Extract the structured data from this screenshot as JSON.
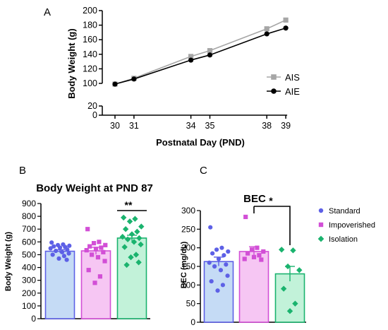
{
  "chart_data": [
    {
      "panel": "A",
      "type": "line",
      "title": "",
      "xlabel": "Postnatal Day (PND)",
      "ylabel": "Body Weight (g)",
      "x": [
        30,
        31,
        34,
        35,
        38,
        39
      ],
      "x_ticks": [
        "30",
        "31",
        "34",
        "35",
        "38",
        "39"
      ],
      "y_ticks_upper": [
        "100",
        "120",
        "140",
        "160",
        "180",
        "200"
      ],
      "y_ticks_lower": [
        "0",
        "20"
      ],
      "ylim_upper": [
        100,
        200
      ],
      "ylim_lower": [
        0,
        20
      ],
      "broken_axis": true,
      "series": [
        {
          "name": "AIS",
          "color": "#a6a6a6",
          "marker": "square",
          "values": [
            99,
            107,
            137,
            145,
            175,
            187
          ],
          "errors": [
            1.2,
            1.2,
            1.5,
            1.5,
            2,
            2.5
          ]
        },
        {
          "name": "AIE",
          "color": "#000000",
          "marker": "circle",
          "values": [
            99,
            106,
            132,
            139,
            168,
            176
          ],
          "errors": [
            1.2,
            1.2,
            1.5,
            1.5,
            2,
            3
          ]
        }
      ],
      "legend_position": "right"
    },
    {
      "panel": "B",
      "type": "bar",
      "title": "Body Weight at PND 87",
      "xlabel": "",
      "ylabel": "Body Weight (g)",
      "ylim": [
        0,
        900
      ],
      "y_ticks": [
        "0",
        "100",
        "200",
        "300",
        "400",
        "500",
        "600",
        "700",
        "800",
        "900"
      ],
      "groups": [
        {
          "name": "Standard",
          "mean": 527,
          "sem": 12,
          "fill": "#c5dbf5",
          "edge": "#5d60e6",
          "marker": "circle",
          "points": [
            595,
            580,
            575,
            570,
            565,
            560,
            555,
            550,
            540,
            530,
            520,
            510,
            500,
            490,
            470,
            460
          ]
        },
        {
          "name": "Impoverished",
          "mean": 530,
          "sem": 28,
          "fill": "#f6c6f3",
          "edge": "#d24fd6",
          "marker": "square",
          "points": [
            700,
            600,
            590,
            575,
            565,
            555,
            545,
            535,
            520,
            500,
            480,
            450,
            380,
            330,
            280
          ]
        },
        {
          "name": "Isolation",
          "mean": 630,
          "sem": 22,
          "fill": "#c2f2d9",
          "edge": "#1ab36e",
          "marker": "diamond",
          "points": [
            790,
            780,
            760,
            720,
            700,
            680,
            660,
            640,
            630,
            620,
            600,
            580,
            560,
            500,
            480,
            440,
            420
          ]
        }
      ],
      "significance": [
        {
          "label": "**",
          "group": "Isolation"
        }
      ]
    },
    {
      "panel": "C",
      "type": "bar",
      "title": "BEC",
      "xlabel": "",
      "ylabel": "BEC (mg/dL)",
      "ylim": [
        0,
        300
      ],
      "y_ticks": [
        "0",
        "50",
        "100",
        "150",
        "200",
        "250",
        "300"
      ],
      "groups": [
        {
          "name": "Standard",
          "mean": 163,
          "sem": 12,
          "fill": "#c5dbf5",
          "edge": "#5d60e6",
          "marker": "circle",
          "points": [
            255,
            200,
            195,
            190,
            185,
            180,
            170,
            160,
            155,
            150,
            140,
            125,
            110,
            100,
            85
          ]
        },
        {
          "name": "Impoverished",
          "mean": 190,
          "sem": 13,
          "fill": "#f6c6f3",
          "edge": "#d24fd6",
          "marker": "square",
          "points": [
            283,
            200,
            195,
            190,
            185,
            180,
            175,
            170,
            168
          ]
        },
        {
          "name": "Isolation",
          "mean": 130,
          "sem": 20,
          "fill": "#c2f2d9",
          "edge": "#1ab36e",
          "marker": "diamond",
          "points": [
            195,
            193,
            150,
            140,
            90,
            50,
            30
          ]
        }
      ],
      "significance": [
        {
          "label": "*",
          "between": [
            "Impoverished",
            "Isolation"
          ]
        }
      ],
      "legend_position": "right"
    }
  ]
}
